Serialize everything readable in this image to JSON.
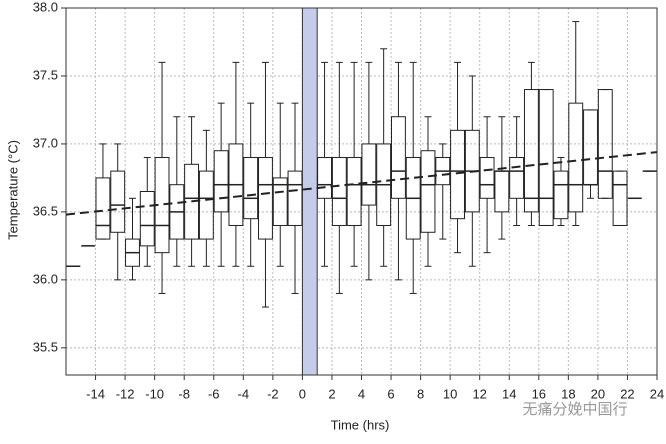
{
  "chart_data": {
    "type": "box",
    "xlabel": "Time (hrs)",
    "ylabel": "Temperature (°C)",
    "watermark": "无痛分娩中国行",
    "xlim": [
      -16,
      24
    ],
    "ylim": [
      35.3,
      38.0
    ],
    "xticks": [
      -14,
      -12,
      -10,
      -8,
      -6,
      -4,
      -2,
      0,
      2,
      4,
      6,
      8,
      10,
      12,
      14,
      16,
      18,
      20,
      22,
      24
    ],
    "yticks": [
      {
        "value": 35.5,
        "label": "35.5"
      },
      {
        "value": 36.0,
        "label": "36.0"
      },
      {
        "value": 36.5,
        "label": "36.5"
      },
      {
        "value": 37.0,
        "label": "37.0"
      },
      {
        "value": 37.5,
        "label": "37.5"
      },
      {
        "value": 38.0,
        "label": "38.0"
      }
    ],
    "grid": true,
    "highlight": [
      0,
      1
    ],
    "highlight_color": "#c5cbeb",
    "trend_x": [
      -16,
      24
    ],
    "trend_y": [
      36.48,
      36.94
    ],
    "x": [
      -15.5,
      -14.5,
      -13.5,
      -12.5,
      -11.5,
      -10.5,
      -9.5,
      -8.5,
      -7.5,
      -6.5,
      -5.5,
      -4.5,
      -3.5,
      -2.5,
      -1.5,
      -0.5,
      1.5,
      2.5,
      3.5,
      4.5,
      5.5,
      6.5,
      7.5,
      8.5,
      9.5,
      10.5,
      11.5,
      12.5,
      13.5,
      14.5,
      15.5,
      16.5,
      17.5,
      18.5,
      19.5,
      20.5,
      21.5,
      22.5,
      23.5
    ],
    "min": [
      36.1,
      36.25,
      36.3,
      36.0,
      36.0,
      36.1,
      35.9,
      36.1,
      36.1,
      36.1,
      36.1,
      36.1,
      36.1,
      35.8,
      36.1,
      35.9,
      36.1,
      35.9,
      36.1,
      36.0,
      36.1,
      36.0,
      35.9,
      36.1,
      36.3,
      36.2,
      36.1,
      36.2,
      36.3,
      36.4,
      36.4,
      36.4,
      36.4,
      36.4,
      36.6,
      36.6,
      36.4,
      36.6,
      36.8
    ],
    "q1": [
      36.1,
      36.25,
      36.3,
      36.35,
      36.1,
      36.25,
      36.2,
      36.3,
      36.3,
      36.3,
      36.5,
      36.4,
      36.45,
      36.3,
      36.4,
      36.4,
      36.6,
      36.4,
      36.4,
      36.55,
      36.4,
      36.6,
      36.3,
      36.35,
      36.7,
      36.45,
      36.5,
      36.6,
      36.5,
      36.6,
      36.5,
      36.4,
      36.45,
      36.5,
      36.7,
      36.6,
      36.4,
      36.6,
      36.8
    ],
    "median": [
      36.1,
      36.25,
      36.4,
      36.55,
      36.2,
      36.4,
      36.4,
      36.5,
      36.6,
      36.6,
      36.7,
      36.7,
      36.6,
      36.7,
      36.7,
      36.7,
      36.7,
      36.6,
      36.7,
      36.7,
      36.7,
      36.8,
      36.6,
      36.7,
      36.8,
      36.8,
      36.8,
      36.7,
      36.8,
      36.8,
      36.6,
      36.6,
      36.7,
      36.7,
      36.7,
      36.8,
      36.7,
      36.6,
      36.8
    ],
    "q3": [
      36.1,
      36.25,
      36.75,
      36.8,
      36.3,
      36.65,
      36.9,
      36.7,
      36.85,
      36.8,
      36.95,
      37.0,
      36.9,
      36.9,
      36.75,
      36.8,
      36.9,
      36.9,
      36.9,
      37.0,
      37.0,
      37.2,
      36.9,
      36.95,
      36.9,
      37.1,
      37.1,
      36.9,
      36.8,
      36.9,
      37.4,
      37.4,
      36.8,
      37.3,
      37.25,
      37.4,
      36.8,
      36.6,
      36.8
    ],
    "max": [
      36.1,
      36.25,
      37.0,
      37.0,
      36.6,
      36.9,
      37.6,
      37.2,
      37.2,
      37.1,
      37.3,
      37.6,
      37.3,
      37.6,
      37.3,
      37.3,
      37.6,
      37.6,
      37.6,
      37.6,
      37.7,
      37.6,
      37.6,
      37.2,
      37.0,
      37.6,
      37.5,
      37.2,
      37.2,
      37.2,
      37.6,
      37.4,
      36.9,
      37.9,
      37.25,
      37.4,
      36.8,
      36.6,
      36.8
    ]
  }
}
